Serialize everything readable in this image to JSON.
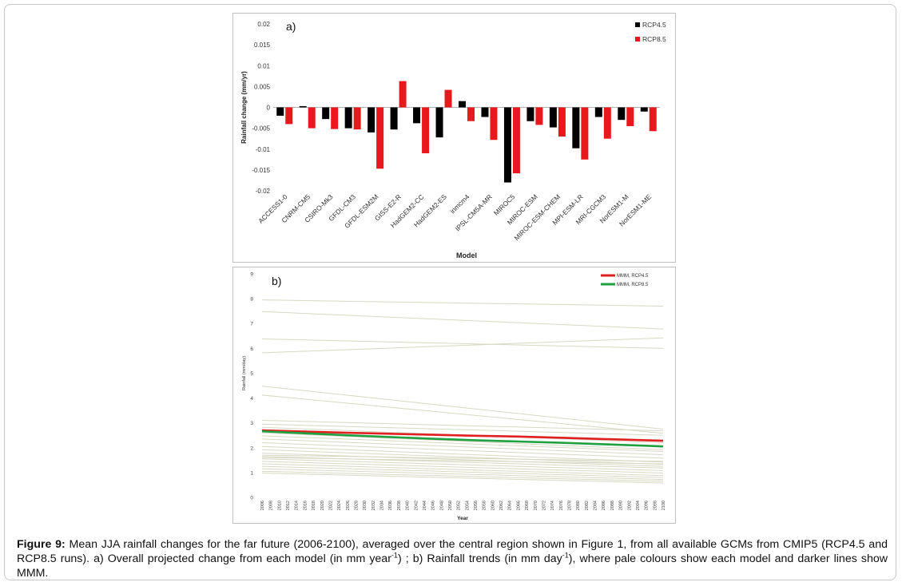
{
  "colors": {
    "rcp45_bar": "#000000",
    "rcp85_bar": "#e8181c",
    "mmm_rcp45": "#e02020",
    "mmm_rcp85": "#20a040",
    "model_line": "#d8d8c4"
  },
  "caption": {
    "label": "Figure 9:",
    "text1": "Mean JJA rainfall changes for the far future (2006-2100), averaged over the central region shown in Figure 1, from all available GCMs from CMIP5 (RCP4.5 and RCP8.5 runs). a) Overall projected change from each model (in mm year",
    "sup1": "-1",
    "text2": ") ; b) Rainfall trends (in mm day",
    "sup2": "-1",
    "text3": "), where pale colours show each model and darker lines show MMM."
  },
  "chart_data": [
    {
      "type": "bar",
      "panel_label": "a)",
      "xlabel": "Model",
      "ylabel": "Rainfall change (mm/yr)",
      "ylim": [
        -0.02,
        0.02
      ],
      "yticks": [
        -0.02,
        -0.015,
        -0.01,
        -0.005,
        0,
        0.005,
        0.01,
        0.015,
        0.02
      ],
      "ytick_labels": [
        "-0.02",
        "-0.015",
        "-0.01",
        "-0.005",
        "0",
        "0.005",
        "0.01",
        "0.015",
        "0.02"
      ],
      "legend_position": "top-right",
      "categories": [
        "ACCESS1-0",
        "CNRM-CM5",
        "CSIRO-Mk3",
        "GFDL-CM3",
        "GFDL-ESM2M",
        "GISS-E2-R",
        "HadGEM2-CC",
        "HadGEM2-ES",
        "inmcm4",
        "IPSL-CM5A-MR",
        "MIROC5",
        "MIROC-ESM",
        "MIROC-ESM-CHEM",
        "MPI-ESM-LR",
        "MRI-CGCM3",
        "NorESM1-M",
        "NorESM1-ME"
      ],
      "series": [
        {
          "name": "RCP4.5",
          "values": [
            -0.002,
            0.0003,
            -0.0028,
            -0.005,
            -0.006,
            -0.0053,
            -0.0038,
            -0.0072,
            0.0015,
            -0.0023,
            -0.018,
            -0.0033,
            -0.0048,
            -0.0098,
            -0.0023,
            -0.003,
            -0.001
          ]
        },
        {
          "name": "RCP8.5",
          "values": [
            -0.004,
            -0.005,
            -0.0052,
            -0.0053,
            -0.0147,
            0.0063,
            -0.011,
            0.0042,
            -0.0033,
            -0.0078,
            -0.0158,
            -0.0042,
            -0.007,
            -0.0125,
            -0.0075,
            -0.0045,
            -0.0057
          ]
        }
      ]
    },
    {
      "type": "line",
      "panel_label": "b)",
      "xlabel": "Year",
      "ylabel": "Rainfall (mm/day)",
      "xlim": [
        2006,
        2100
      ],
      "ylim": [
        0,
        9
      ],
      "xticks": [
        2006,
        2008,
        2010,
        2012,
        2014,
        2016,
        2018,
        2020,
        2022,
        2024,
        2026,
        2028,
        2030,
        2032,
        2034,
        2036,
        2038,
        2040,
        2042,
        2044,
        2046,
        2048,
        2050,
        2052,
        2054,
        2056,
        2058,
        2060,
        2062,
        2064,
        2066,
        2068,
        2070,
        2072,
        2074,
        2076,
        2078,
        2080,
        2082,
        2084,
        2086,
        2088,
        2090,
        2092,
        2094,
        2096,
        2098,
        2100
      ],
      "yticks": [
        0,
        1,
        2,
        3,
        4,
        5,
        6,
        7,
        8,
        9
      ],
      "legend_position": "top-right",
      "mmm_series": [
        {
          "name": "MMM, RCP4.5",
          "x": [
            2006,
            2016,
            2026,
            2036,
            2046,
            2056,
            2066,
            2076,
            2086,
            2096,
            2100
          ],
          "y": [
            2.7,
            2.65,
            2.6,
            2.56,
            2.52,
            2.48,
            2.45,
            2.4,
            2.35,
            2.3,
            2.28
          ]
        },
        {
          "name": "MMM, RCP8.5",
          "x": [
            2006,
            2016,
            2026,
            2036,
            2046,
            2056,
            2066,
            2076,
            2086,
            2096,
            2100
          ],
          "y": [
            2.66,
            2.58,
            2.5,
            2.43,
            2.36,
            2.3,
            2.25,
            2.2,
            2.14,
            2.08,
            2.05
          ]
        }
      ],
      "model_series": [
        {
          "x": [
            2006,
            2100
          ],
          "y": [
            7.95,
            7.7
          ]
        },
        {
          "x": [
            2006,
            2100
          ],
          "y": [
            7.48,
            6.78
          ]
        },
        {
          "x": [
            2006,
            2100
          ],
          "y": [
            6.38,
            6.0
          ]
        },
        {
          "x": [
            2006,
            2100
          ],
          "y": [
            5.82,
            6.42
          ]
        },
        {
          "x": [
            2006,
            2100
          ],
          "y": [
            4.48,
            2.75
          ]
        },
        {
          "x": [
            2006,
            2100
          ],
          "y": [
            4.12,
            2.58
          ]
        },
        {
          "x": [
            2006,
            2100
          ],
          "y": [
            3.1,
            2.68
          ]
        },
        {
          "x": [
            2006,
            2100
          ],
          "y": [
            2.95,
            2.5
          ]
        },
        {
          "x": [
            2006,
            2100
          ],
          "y": [
            2.82,
            2.2
          ]
        },
        {
          "x": [
            2006,
            2100
          ],
          "y": [
            2.6,
            1.92
          ]
        },
        {
          "x": [
            2006,
            2100
          ],
          "y": [
            2.48,
            1.85
          ]
        },
        {
          "x": [
            2006,
            2100
          ],
          "y": [
            2.35,
            1.72
          ]
        },
        {
          "x": [
            2006,
            2100
          ],
          "y": [
            2.2,
            1.58
          ]
        },
        {
          "x": [
            2006,
            2100
          ],
          "y": [
            2.05,
            1.42
          ]
        },
        {
          "x": [
            2006,
            2100
          ],
          "y": [
            1.92,
            1.33
          ]
        },
        {
          "x": [
            2006,
            2100
          ],
          "y": [
            1.78,
            1.25
          ]
        },
        {
          "x": [
            2006,
            2100
          ],
          "y": [
            1.65,
            1.18
          ]
        },
        {
          "x": [
            2006,
            2100
          ],
          "y": [
            1.55,
            1.08
          ]
        },
        {
          "x": [
            2006,
            2100
          ],
          "y": [
            1.45,
            0.98
          ]
        },
        {
          "x": [
            2006,
            2100
          ],
          "y": [
            1.35,
            0.88
          ]
        },
        {
          "x": [
            2006,
            2100
          ],
          "y": [
            1.25,
            0.8
          ]
        },
        {
          "x": [
            2006,
            2100
          ],
          "y": [
            1.15,
            0.72
          ]
        },
        {
          "x": [
            2006,
            2100
          ],
          "y": [
            1.05,
            0.65
          ]
        },
        {
          "x": [
            2006,
            2100
          ],
          "y": [
            0.98,
            0.58
          ]
        },
        {
          "x": [
            2006,
            2100
          ],
          "y": [
            1.7,
            1.45
          ]
        },
        {
          "x": [
            2006,
            2100
          ],
          "y": [
            1.6,
            1.35
          ]
        }
      ]
    }
  ]
}
